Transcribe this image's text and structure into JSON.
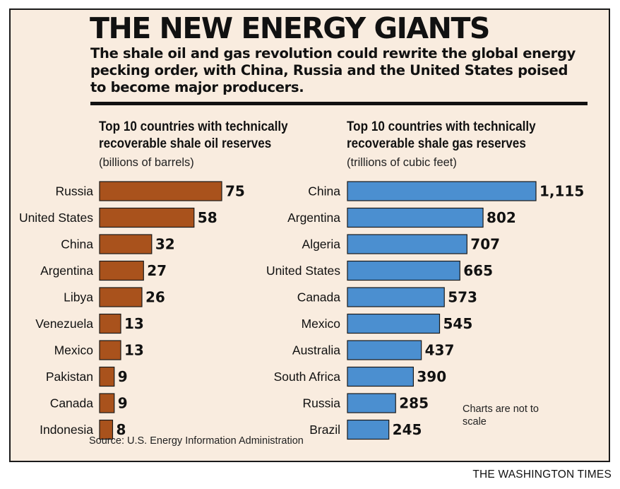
{
  "title": "THE NEW ENERGY GIANTS",
  "subtitle": "The shale oil and gas revolution could rewrite the global energy pecking order, with China, Russia and the United States poised to become major producers.",
  "note": "Charts are not to scale",
  "source": "Source: U.S. Energy Information Administration",
  "credit": "THE WASHINGTON TIMES",
  "colors": {
    "oil": "#a9521c",
    "gas": "#4b8fd0",
    "background": "#f9ecdf"
  },
  "chart_data": [
    {
      "type": "bar",
      "orientation": "horizontal",
      "title": "Top 10 countries with technically recoverable shale oil reserves",
      "unit": "(billions of barrels)",
      "categories": [
        "Russia",
        "United States",
        "China",
        "Argentina",
        "Libya",
        "Venezuela",
        "Mexico",
        "Pakistan",
        "Canada",
        "Indonesia"
      ],
      "values": [
        75,
        58,
        32,
        27,
        26,
        13,
        13,
        9,
        9,
        8
      ],
      "value_labels": [
        "75",
        "58",
        "32",
        "27",
        "26",
        "13",
        "13",
        "9",
        "9",
        "8"
      ],
      "grid": false
    },
    {
      "type": "bar",
      "orientation": "horizontal",
      "title": "Top 10 countries with technically recoverable shale gas reserves",
      "unit": "(trillions of cubic feet)",
      "categories": [
        "China",
        "Argentina",
        "Algeria",
        "United States",
        "Canada",
        "Mexico",
        "Australia",
        "South Africa",
        "Russia",
        "Brazil"
      ],
      "values": [
        1115,
        802,
        707,
        665,
        573,
        545,
        437,
        390,
        285,
        245
      ],
      "value_labels": [
        "1,115",
        "802",
        "707",
        "665",
        "573",
        "545",
        "437",
        "390",
        "285",
        "245"
      ],
      "grid": false
    }
  ]
}
